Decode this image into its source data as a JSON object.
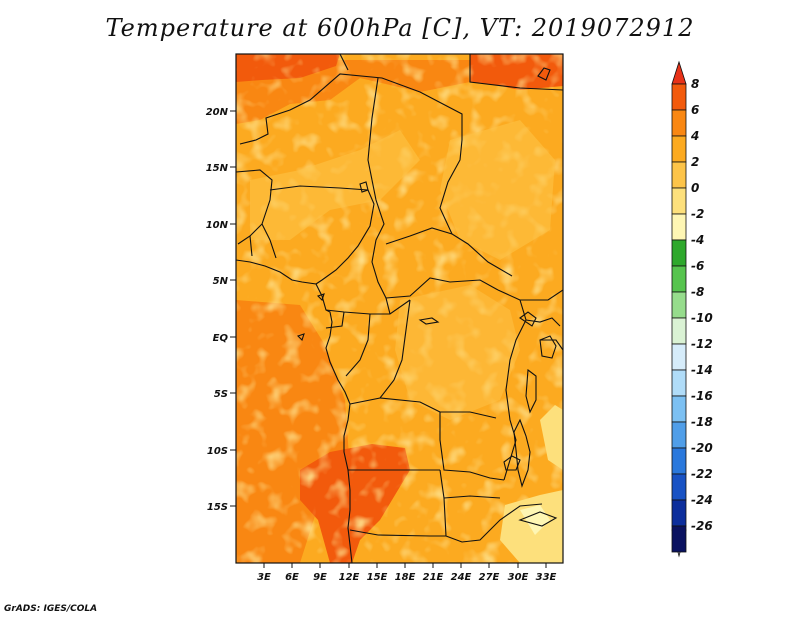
{
  "title": "Temperature at 600hPa [C], VT: 2019072912",
  "credit": "GrADS: IGES/COLA",
  "map": {
    "variable": "Temperature at 600hPa",
    "units": "C",
    "valid_time": "2019072912",
    "lat_labels": [
      "20N",
      "15N",
      "10N",
      "5N",
      "EQ",
      "5S",
      "10S",
      "15S"
    ],
    "lon_labels": [
      "3E",
      "6E",
      "9E",
      "12E",
      "15E",
      "18E",
      "21E",
      "24E",
      "27E",
      "30E",
      "33E"
    ]
  },
  "colorbar": {
    "labels": [
      "8",
      "6",
      "4",
      "2",
      "0",
      "-2",
      "-4",
      "-6",
      "-8",
      "-10",
      "-12",
      "-14",
      "-16",
      "-18",
      "-20",
      "-22",
      "-24",
      "-26"
    ],
    "colors": [
      "#e83218",
      "#f25a0c",
      "#f98712",
      "#fcaa20",
      "#fdc449",
      "#fde07c",
      "#fef6b4",
      "#2ea82c",
      "#56c44e",
      "#96dc8c",
      "#daf2d4",
      "#d6ecfa",
      "#b0dcf8",
      "#7cc0f2",
      "#509ee8",
      "#2a78dc",
      "#1852c4",
      "#0c2e9c",
      "#0a1260",
      "#dcdcf0"
    ]
  }
}
